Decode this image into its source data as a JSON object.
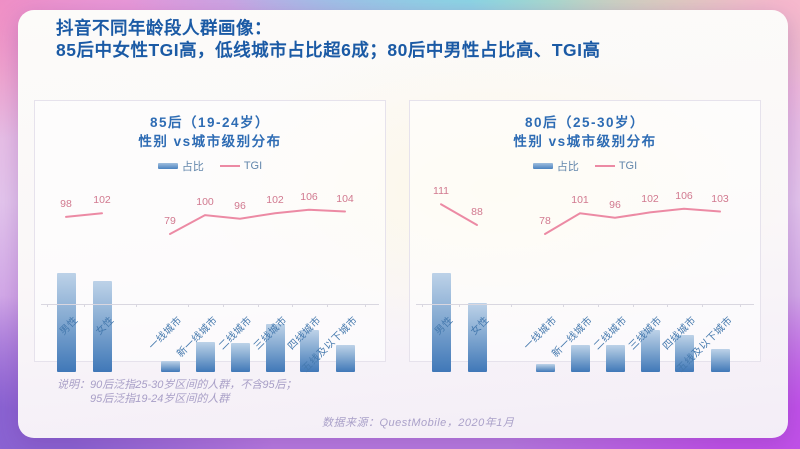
{
  "title": {
    "line1": "抖音不同年龄段人群画像：",
    "line2": "85后中女性TGI高，低线城市占比超6成；80后中男性占比高、TGI高"
  },
  "legend": {
    "bar_label": "占比",
    "line_label": "TGI"
  },
  "notes": {
    "label": "说明：",
    "line1": "90后泛指25-30岁区间的人群，不含95后；",
    "line2": "95后泛指19-24岁区间的人群"
  },
  "source": "数据来源：QuestMobile，2020年1月",
  "colors": {
    "title_blue": "#1b5aa5",
    "panel_title_blue": "#2e6cb4",
    "bar_top": "#bdd2e8",
    "bar_bottom": "#4078b8",
    "tgi_line_pink": "#ec8aa4",
    "tgi_label_pink": "#d1798f",
    "axis_label_blue": "#4579ae",
    "note_purple": "#a89fc7"
  },
  "chart_data": [
    {
      "type": "bar+line",
      "title_line1": "85后（19-24岁）",
      "title_line2": "性别 vs城市级别分布",
      "categories": [
        "男性",
        "女性",
        "一线城市",
        "新一线城市",
        "二线城市",
        "三线城市",
        "四线城市",
        "五线及以下城市"
      ],
      "series": [
        {
          "name": "占比",
          "type": "bar",
          "unit": "%（估算）",
          "values": [
            52,
            48,
            6,
            16,
            15,
            25,
            22,
            14
          ]
        },
        {
          "name": "TGI",
          "type": "line",
          "values": [
            98,
            102,
            79,
            100,
            96,
            102,
            106,
            104
          ]
        }
      ],
      "groups": [
        [
          0,
          1
        ],
        [
          2,
          3,
          4,
          5,
          6,
          7
        ]
      ],
      "legend_position": "top",
      "grid": false
    },
    {
      "type": "bar+line",
      "title_line1": "80后（25-30岁）",
      "title_line2": "性别 vs城市级别分布",
      "categories": [
        "男性",
        "女性",
        "一线城市",
        "新一线城市",
        "二线城市",
        "三线城市",
        "四线城市",
        "五线及以下城市"
      ],
      "series": [
        {
          "name": "占比",
          "type": "bar",
          "unit": "%（估算）",
          "values": [
            59,
            41,
            5,
            16,
            16,
            25,
            22,
            14
          ]
        },
        {
          "name": "TGI",
          "type": "line",
          "values": [
            111,
            88,
            78,
            101,
            96,
            102,
            106,
            103
          ]
        }
      ],
      "groups": [
        [
          0,
          1
        ],
        [
          2,
          3,
          4,
          5,
          6,
          7
        ]
      ],
      "legend_position": "top",
      "grid": false
    }
  ]
}
